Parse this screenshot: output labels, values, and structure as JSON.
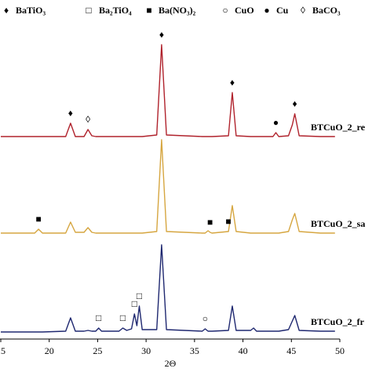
{
  "chart_data": {
    "type": "line",
    "x_label": "2Θ",
    "xlim": [
      15,
      50
    ],
    "xticks": [
      15,
      20,
      25,
      30,
      35,
      40,
      45,
      50
    ],
    "legend": [
      {
        "symbol": "♦",
        "label": "BaTiO₃"
      },
      {
        "symbol": "□",
        "label": "Ba₂TiO₄"
      },
      {
        "symbol": "■",
        "label": "Ba(NO₃)₂"
      },
      {
        "symbol": "○",
        "label": "CuO"
      },
      {
        "symbol": "●",
        "label": "Cu"
      },
      {
        "symbol": "◊",
        "label": "BaCO₃"
      }
    ],
    "x": [
      15,
      18.5,
      18.9,
      19.3,
      21.7,
      22.2,
      22.7,
      23.6,
      24.0,
      24.4,
      24.8,
      25.1,
      25.4,
      27.2,
      27.6,
      28.0,
      28.5,
      28.8,
      29.05,
      29.3,
      29.6,
      31.1,
      31.6,
      32.1,
      35.8,
      36.1,
      36.4,
      36.6,
      36.8,
      38.5,
      38.9,
      39.3,
      40.8,
      41.1,
      41.4,
      43.1,
      43.4,
      43.7,
      44.7,
      45.1,
      45.35,
      45.8,
      48,
      49.5
    ],
    "series": [
      {
        "name": "BTCuO_2_re",
        "color": "#b0222c",
        "values": [
          1,
          1,
          1,
          1,
          1,
          18,
          1,
          1,
          10,
          2,
          1,
          1,
          1,
          1,
          1,
          1,
          1,
          1,
          1,
          1,
          1,
          3,
          118,
          3,
          1,
          1,
          1,
          1,
          1,
          2,
          57,
          2,
          1,
          1,
          1,
          1,
          6,
          1,
          2,
          16,
          30,
          2,
          1,
          1
        ],
        "peak_labels": [
          null,
          null,
          null,
          null,
          null,
          "♦",
          null,
          null,
          "◊",
          null,
          null,
          null,
          null,
          null,
          null,
          null,
          null,
          null,
          null,
          null,
          null,
          null,
          "♦",
          null,
          null,
          null,
          null,
          null,
          null,
          null,
          "♦",
          null,
          null,
          null,
          null,
          null,
          "●",
          null,
          null,
          null,
          "♦",
          null,
          null,
          null
        ]
      },
      {
        "name": "BTCuO_2_sa",
        "color": "#d6a640",
        "values": [
          1,
          1,
          6,
          1,
          1,
          15,
          2,
          2,
          8,
          2,
          1,
          1,
          1,
          1,
          1,
          1,
          1,
          1,
          1,
          1,
          1,
          3,
          120,
          3,
          1,
          1,
          4,
          2,
          1,
          3,
          36,
          3,
          1,
          1,
          1,
          1,
          1,
          1,
          3,
          18,
          26,
          3,
          1,
          1
        ],
        "peak_labels": [
          null,
          null,
          "■",
          null,
          null,
          null,
          null,
          null,
          null,
          null,
          null,
          null,
          null,
          null,
          null,
          null,
          null,
          null,
          null,
          null,
          null,
          null,
          null,
          null,
          null,
          null,
          null,
          "■",
          null,
          "■",
          null,
          null,
          null,
          null,
          null,
          null,
          null,
          null,
          null,
          null,
          null,
          null,
          null,
          null
        ]
      },
      {
        "name": "BTCuO_2_fr",
        "color": "#1f2870",
        "values": [
          0,
          0,
          0,
          0,
          1,
          18,
          1,
          1,
          2,
          1,
          1,
          5,
          1,
          1,
          5,
          2,
          4,
          23,
          8,
          33,
          3,
          3,
          111,
          3,
          1,
          4,
          1,
          1,
          1,
          2,
          33,
          2,
          2,
          5,
          1,
          1,
          1,
          1,
          3,
          14,
          21,
          2,
          1,
          1
        ],
        "peak_labels": [
          null,
          null,
          null,
          null,
          null,
          null,
          null,
          null,
          null,
          null,
          null,
          "□",
          null,
          null,
          "□",
          null,
          null,
          "□",
          null,
          "□",
          null,
          null,
          null,
          null,
          null,
          "○",
          null,
          null,
          null,
          null,
          null,
          null,
          null,
          null,
          null,
          null,
          null,
          null,
          null,
          null,
          null,
          null,
          null,
          null
        ]
      }
    ]
  }
}
